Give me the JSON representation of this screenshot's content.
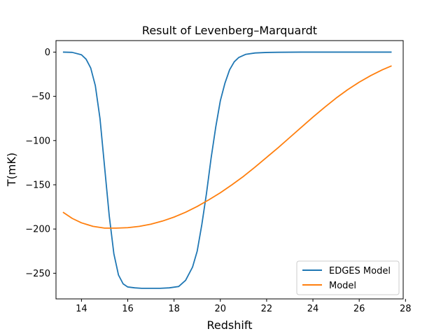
{
  "chart_data": {
    "type": "line",
    "title": "Result of Levenberg–Marquardt",
    "xlabel": "Redshift",
    "ylabel": "T(mK)",
    "xlim": [
      12.9,
      27.9
    ],
    "ylim": [
      -279,
      13
    ],
    "xticks": [
      14,
      16,
      18,
      20,
      22,
      24,
      26,
      28
    ],
    "yticks": [
      0,
      -50,
      -100,
      -150,
      -200,
      -250
    ],
    "grid": false,
    "legend_position": "lower right",
    "series": [
      {
        "name": "EDGES Model",
        "color": "#1f77b4",
        "x": [
          13.2,
          13.6,
          14.0,
          14.2,
          14.4,
          14.6,
          14.8,
          15.0,
          15.2,
          15.4,
          15.6,
          15.8,
          16.0,
          16.3,
          16.6,
          17.0,
          17.4,
          17.8,
          18.2,
          18.5,
          18.8,
          19.0,
          19.2,
          19.4,
          19.6,
          19.8,
          20.0,
          20.2,
          20.4,
          20.6,
          20.8,
          21.1,
          21.5,
          22.0,
          22.5,
          23.5,
          25.0,
          27.4
        ],
        "values": [
          0,
          -0.3,
          -3,
          -8,
          -18,
          -38,
          -75,
          -130,
          -185,
          -228,
          -252,
          -262,
          -265.5,
          -266.5,
          -267,
          -267,
          -267,
          -266.5,
          -265,
          -258,
          -243,
          -225,
          -195,
          -160,
          -120,
          -85,
          -55,
          -35,
          -20,
          -11,
          -6,
          -2.5,
          -1,
          -0.4,
          -0.2,
          0,
          0,
          0
        ]
      },
      {
        "name": "Model",
        "color": "#ff7f0e",
        "x": [
          13.2,
          13.6,
          14.0,
          14.5,
          15.0,
          15.5,
          16.0,
          16.5,
          17.0,
          17.5,
          18.0,
          18.5,
          19.0,
          19.5,
          20.0,
          20.5,
          21.0,
          21.5,
          22.0,
          22.5,
          23.0,
          23.5,
          24.0,
          24.5,
          25.0,
          25.5,
          26.0,
          26.5,
          27.0,
          27.4
        ],
        "values": [
          -181,
          -188,
          -193,
          -197,
          -199,
          -199,
          -198.5,
          -197,
          -194.5,
          -191,
          -186.5,
          -181,
          -174.5,
          -167,
          -159,
          -150,
          -140.5,
          -130,
          -119,
          -108,
          -96.5,
          -85,
          -73.5,
          -62.5,
          -52,
          -42.5,
          -34,
          -26.5,
          -20,
          -15.5
        ]
      }
    ]
  }
}
